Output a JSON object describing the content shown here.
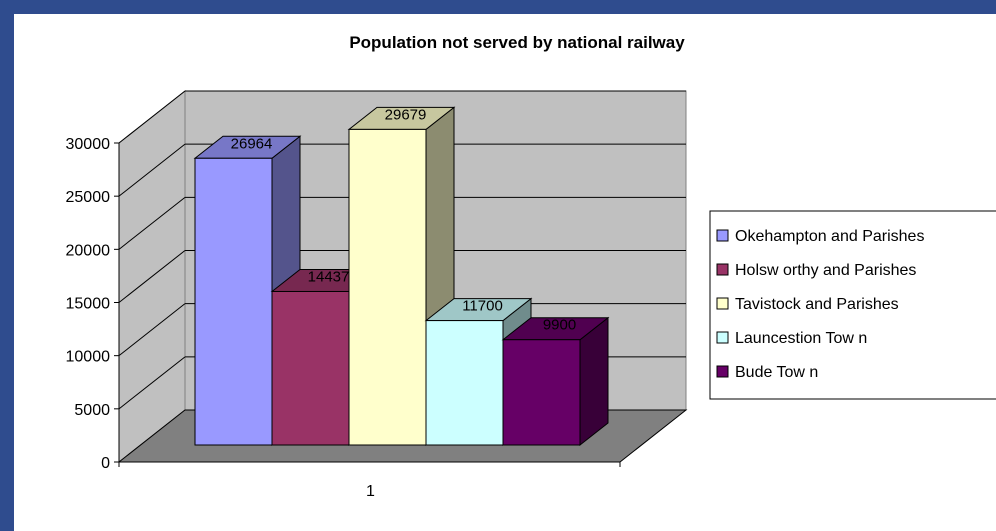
{
  "chart_data": {
    "type": "bar",
    "title": "Population not served by national railway",
    "categories": [
      "1"
    ],
    "series": [
      {
        "name": "Okehampton and Parishes",
        "values": [
          26964
        ],
        "color": "#9999ff"
      },
      {
        "name": "Holsw orthy and Parishes",
        "values": [
          14437
        ],
        "color": "#993366"
      },
      {
        "name": "Tavistock and Parishes",
        "values": [
          29679
        ],
        "color": "#ffffcc"
      },
      {
        "name": "Launcestion Tow n",
        "values": [
          11700
        ],
        "color": "#ccffff"
      },
      {
        "name": "Bude Tow n",
        "values": [
          9900
        ],
        "color": "#660066"
      }
    ],
    "ylim": [
      0,
      30000
    ],
    "yticks": [
      0,
      5000,
      10000,
      15000,
      20000,
      25000,
      30000
    ],
    "grid": true,
    "legend": "right",
    "three_d": true
  },
  "colors": {
    "frame": "#2f4c8e",
    "wall": "#c0c0c0",
    "floor": "#808080"
  }
}
